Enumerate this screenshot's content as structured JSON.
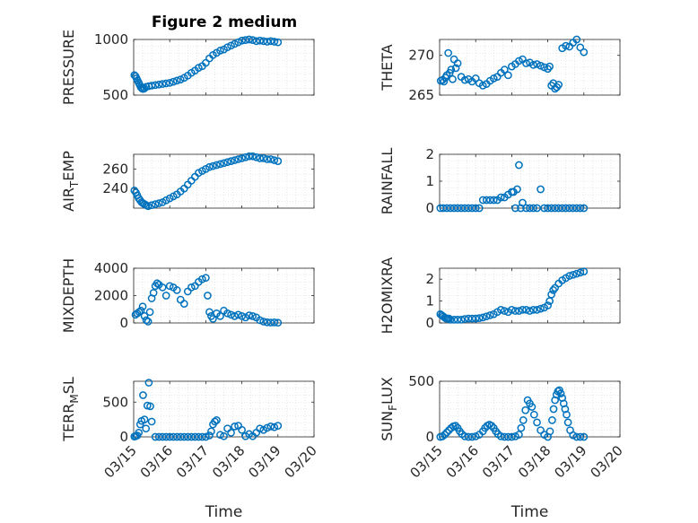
{
  "figure": {
    "title": "Figure 2 medium",
    "marker_color": "#0072BD"
  },
  "chart_data": [
    {
      "type": "scatter",
      "id": "pressure",
      "ylabel": {
        "main": "PRESSURE"
      },
      "ylim": [
        500,
        1000
      ],
      "yticks": [
        500,
        1000
      ],
      "xlim": [
        0,
        5
      ],
      "xtick_labels": [],
      "grid": true,
      "x": [
        0.02,
        0.05,
        0.08,
        0.11,
        0.14,
        0.17,
        0.2,
        0.23,
        0.26,
        0.3,
        0.35,
        0.42,
        0.5,
        0.6,
        0.7,
        0.8,
        0.9,
        1.0,
        1.1,
        1.2,
        1.3,
        1.4,
        1.5,
        1.6,
        1.7,
        1.8,
        1.9,
        2.0,
        2.1,
        2.2,
        2.3,
        2.4,
        2.5,
        2.6,
        2.7,
        2.8,
        2.9,
        3.0,
        3.1,
        3.2,
        3.3,
        3.4,
        3.5,
        3.6,
        3.7,
        3.8,
        3.9,
        4.0
      ],
      "y": [
        680,
        670,
        650,
        630,
        610,
        590,
        570,
        560,
        555,
        560,
        575,
        580,
        585,
        590,
        595,
        600,
        605,
        610,
        620,
        630,
        640,
        655,
        675,
        700,
        720,
        745,
        760,
        790,
        830,
        860,
        880,
        900,
        910,
        930,
        945,
        960,
        975,
        990,
        995,
        1000,
        995,
        985,
        990,
        985,
        980,
        985,
        980,
        975
      ]
    },
    {
      "type": "scatter",
      "id": "theta",
      "ylabel": {
        "main": "THETA"
      },
      "ylim": [
        265,
        272
      ],
      "yticks": [
        265,
        270
      ],
      "xlim": [
        0,
        5
      ],
      "xtick_labels": [],
      "grid": true,
      "x": [
        0.03,
        0.08,
        0.12,
        0.16,
        0.2,
        0.24,
        0.28,
        0.32,
        0.36,
        0.4,
        0.45,
        0.5,
        0.6,
        0.7,
        0.8,
        0.9,
        1.0,
        1.1,
        1.2,
        1.3,
        1.4,
        1.5,
        1.6,
        1.7,
        1.8,
        1.9,
        2.0,
        2.1,
        2.2,
        2.3,
        2.4,
        2.5,
        2.6,
        2.7,
        2.8,
        2.9,
        3.0,
        3.05,
        3.1,
        3.15,
        3.2,
        3.25,
        3.3,
        3.4,
        3.5,
        3.6,
        3.7,
        3.8,
        3.9,
        4.0
      ],
      "y": [
        266.8,
        266.9,
        266.7,
        267.2,
        267.5,
        270.3,
        267.8,
        268.2,
        267.0,
        269.5,
        268.4,
        269.0,
        267.3,
        266.9,
        267.0,
        266.7,
        267.1,
        266.5,
        266.2,
        266.4,
        266.8,
        267.1,
        267.3,
        267.8,
        268.2,
        267.5,
        268.6,
        268.9,
        269.3,
        269.5,
        269.0,
        269.1,
        268.8,
        268.9,
        268.7,
        268.5,
        268.3,
        268.6,
        266.2,
        266.5,
        265.8,
        266.0,
        266.3,
        270.9,
        271.2,
        271.1,
        271.6,
        272.0,
        271.0,
        270.4
      ]
    },
    {
      "type": "scatter",
      "id": "air_temp",
      "ylabel": {
        "main": "AIR",
        "sub": "T",
        "rest": "EMP"
      },
      "ylim": [
        220,
        275
      ],
      "yticks": [
        240,
        260
      ],
      "xlim": [
        0,
        5
      ],
      "xtick_labels": [],
      "grid": true,
      "x": [
        0.02,
        0.06,
        0.1,
        0.14,
        0.18,
        0.22,
        0.26,
        0.3,
        0.35,
        0.4,
        0.5,
        0.6,
        0.7,
        0.8,
        0.9,
        1.0,
        1.1,
        1.2,
        1.3,
        1.4,
        1.5,
        1.6,
        1.7,
        1.8,
        1.9,
        2.0,
        2.1,
        2.2,
        2.3,
        2.4,
        2.5,
        2.6,
        2.7,
        2.8,
        2.9,
        3.0,
        3.1,
        3.2,
        3.3,
        3.4,
        3.5,
        3.6,
        3.7,
        3.8,
        3.9,
        4.0
      ],
      "y": [
        238,
        236,
        233,
        230,
        228,
        226,
        225,
        224,
        223,
        222,
        223,
        224,
        225,
        226,
        228,
        230,
        232,
        234,
        237,
        240,
        244,
        248,
        252,
        256,
        258,
        260,
        262,
        263,
        264,
        265,
        266,
        267,
        268,
        269,
        270,
        271,
        272,
        273,
        273,
        272,
        271,
        271,
        270,
        270,
        269,
        268
      ]
    },
    {
      "type": "scatter",
      "id": "rainfall",
      "ylabel": {
        "main": "RAINFALL"
      },
      "ylim": [
        0,
        2
      ],
      "yticks": [
        0,
        1,
        2
      ],
      "xlim": [
        0,
        5
      ],
      "xtick_labels": [],
      "grid": true,
      "x": [
        0.02,
        0.1,
        0.2,
        0.3,
        0.4,
        0.5,
        0.6,
        0.7,
        0.8,
        0.9,
        1.0,
        1.1,
        1.2,
        1.3,
        1.4,
        1.5,
        1.6,
        1.7,
        1.8,
        1.9,
        2.0,
        2.05,
        2.1,
        2.15,
        2.2,
        2.25,
        2.3,
        2.4,
        2.5,
        2.6,
        2.7,
        2.8,
        2.9,
        3.0,
        3.1,
        3.2,
        3.3,
        3.4,
        3.5,
        3.6,
        3.7,
        3.8,
        3.9,
        4.0
      ],
      "y": [
        0,
        0,
        0,
        0,
        0,
        0,
        0,
        0,
        0,
        0,
        0,
        0,
        0.3,
        0.3,
        0.3,
        0.3,
        0.3,
        0.4,
        0.4,
        0.5,
        0.6,
        0.6,
        0,
        0.7,
        1.6,
        0,
        0.2,
        0,
        0,
        0,
        0,
        0.7,
        0,
        0,
        0,
        0,
        0,
        0,
        0,
        0,
        0,
        0,
        0,
        0
      ]
    },
    {
      "type": "scatter",
      "id": "mixdepth",
      "ylabel": {
        "main": "MIXDEPTH"
      },
      "ylim": [
        0,
        4000
      ],
      "yticks": [
        0,
        2000,
        4000
      ],
      "xlim": [
        0,
        5
      ],
      "xtick_labels": [],
      "grid": true,
      "x": [
        0.05,
        0.1,
        0.15,
        0.2,
        0.25,
        0.3,
        0.35,
        0.4,
        0.45,
        0.5,
        0.55,
        0.6,
        0.65,
        0.7,
        0.8,
        0.9,
        1.0,
        1.1,
        1.2,
        1.3,
        1.4,
        1.5,
        1.6,
        1.7,
        1.8,
        1.9,
        2.0,
        2.05,
        2.1,
        2.15,
        2.2,
        2.3,
        2.4,
        2.5,
        2.6,
        2.7,
        2.8,
        2.9,
        3.0,
        3.1,
        3.2,
        3.3,
        3.4,
        3.5,
        3.6,
        3.7,
        3.8,
        3.9,
        4.0
      ],
      "y": [
        600,
        700,
        800,
        900,
        1200,
        500,
        200,
        100,
        800,
        1800,
        2200,
        2700,
        2900,
        2800,
        2600,
        2000,
        2700,
        2600,
        2400,
        1700,
        1400,
        2300,
        2600,
        2700,
        3000,
        3200,
        3300,
        2000,
        800,
        500,
        300,
        700,
        500,
        900,
        700,
        600,
        500,
        600,
        500,
        400,
        550,
        500,
        400,
        200,
        100,
        50,
        30,
        40,
        20
      ]
    },
    {
      "type": "scatter",
      "id": "h2omixra",
      "ylabel": {
        "main": "H2OMIXRA"
      },
      "ylim": [
        0,
        2.5
      ],
      "yticks": [
        0,
        1,
        2
      ],
      "xlim": [
        0,
        5
      ],
      "xtick_labels": [],
      "grid": true,
      "x": [
        0.02,
        0.06,
        0.1,
        0.14,
        0.18,
        0.22,
        0.26,
        0.3,
        0.4,
        0.5,
        0.6,
        0.7,
        0.8,
        0.9,
        1.0,
        1.1,
        1.2,
        1.3,
        1.4,
        1.5,
        1.6,
        1.7,
        1.8,
        1.9,
        2.0,
        2.1,
        2.2,
        2.3,
        2.4,
        2.5,
        2.6,
        2.7,
        2.8,
        2.9,
        3.0,
        3.05,
        3.1,
        3.15,
        3.2,
        3.3,
        3.4,
        3.5,
        3.6,
        3.7,
        3.8,
        3.9,
        4.0
      ],
      "y": [
        0.4,
        0.35,
        0.3,
        0.25,
        0.2,
        0.2,
        0.2,
        0.15,
        0.15,
        0.15,
        0.15,
        0.18,
        0.2,
        0.2,
        0.2,
        0.22,
        0.25,
        0.3,
        0.35,
        0.4,
        0.5,
        0.6,
        0.55,
        0.5,
        0.6,
        0.55,
        0.55,
        0.6,
        0.6,
        0.55,
        0.6,
        0.6,
        0.65,
        0.7,
        0.8,
        1.0,
        1.3,
        1.5,
        1.6,
        1.8,
        1.95,
        2.05,
        2.15,
        2.2,
        2.25,
        2.3,
        2.35
      ]
    },
    {
      "type": "scatter",
      "id": "terr_msl",
      "ylabel": {
        "main": "TERR",
        "sub": "M",
        "rest": "SL"
      },
      "ylim": [
        0,
        800
      ],
      "yticks": [
        0,
        500
      ],
      "xlim": [
        0,
        5
      ],
      "xtick_labels": [
        "03/15",
        "03/16",
        "03/17",
        "03/18",
        "03/19",
        "03/20"
      ],
      "xlabel": "Time",
      "grid": true,
      "x": [
        0.02,
        0.06,
        0.1,
        0.14,
        0.18,
        0.22,
        0.26,
        0.3,
        0.34,
        0.38,
        0.42,
        0.46,
        0.5,
        0.6,
        0.7,
        0.8,
        0.9,
        1.0,
        1.1,
        1.2,
        1.3,
        1.4,
        1.5,
        1.6,
        1.7,
        1.8,
        1.9,
        2.0,
        2.1,
        2.15,
        2.2,
        2.25,
        2.3,
        2.4,
        2.5,
        2.6,
        2.7,
        2.8,
        2.9,
        3.0,
        3.1,
        3.2,
        3.3,
        3.4,
        3.5,
        3.6,
        3.7,
        3.8,
        3.9,
        4.0
      ],
      "y": [
        5,
        10,
        20,
        60,
        180,
        230,
        600,
        250,
        120,
        450,
        780,
        440,
        220,
        0,
        0,
        0,
        0,
        0,
        0,
        0,
        0,
        0,
        0,
        0,
        0,
        0,
        0,
        0,
        20,
        80,
        180,
        220,
        240,
        30,
        10,
        120,
        60,
        150,
        160,
        100,
        10,
        40,
        10,
        60,
        120,
        100,
        130,
        150,
        140,
        160
      ]
    },
    {
      "type": "scatter",
      "id": "sun_flux",
      "ylabel": {
        "main": "SUN",
        "sub": "F",
        "rest": "LUX"
      },
      "ylim": [
        0,
        500
      ],
      "yticks": [
        0,
        500
      ],
      "xlim": [
        0,
        5
      ],
      "xtick_labels": [
        "03/15",
        "03/16",
        "03/17",
        "03/18",
        "03/19",
        "03/20"
      ],
      "xlabel": "Time",
      "grid": true,
      "x": [
        0.02,
        0.08,
        0.14,
        0.2,
        0.26,
        0.32,
        0.38,
        0.44,
        0.5,
        0.56,
        0.62,
        0.7,
        0.8,
        0.9,
        1.0,
        1.1,
        1.2,
        1.26,
        1.32,
        1.38,
        1.44,
        1.5,
        1.56,
        1.62,
        1.7,
        1.8,
        1.9,
        2.0,
        2.1,
        2.2,
        2.26,
        2.32,
        2.38,
        2.44,
        2.5,
        2.56,
        2.62,
        2.7,
        2.8,
        2.9,
        3.0,
        3.06,
        3.12,
        3.16,
        3.2,
        3.24,
        3.28,
        3.32,
        3.36,
        3.4,
        3.44,
        3.48,
        3.52,
        3.56,
        3.62,
        3.7,
        3.8,
        3.9,
        4.0
      ],
      "y": [
        0,
        5,
        20,
        40,
        60,
        80,
        95,
        100,
        80,
        50,
        25,
        5,
        0,
        0,
        5,
        20,
        50,
        80,
        100,
        110,
        100,
        80,
        50,
        25,
        5,
        0,
        0,
        0,
        5,
        20,
        80,
        150,
        240,
        330,
        300,
        270,
        200,
        130,
        60,
        20,
        0,
        50,
        150,
        250,
        330,
        380,
        410,
        420,
        390,
        350,
        300,
        250,
        200,
        130,
        60,
        15,
        0,
        0,
        0
      ]
    }
  ]
}
